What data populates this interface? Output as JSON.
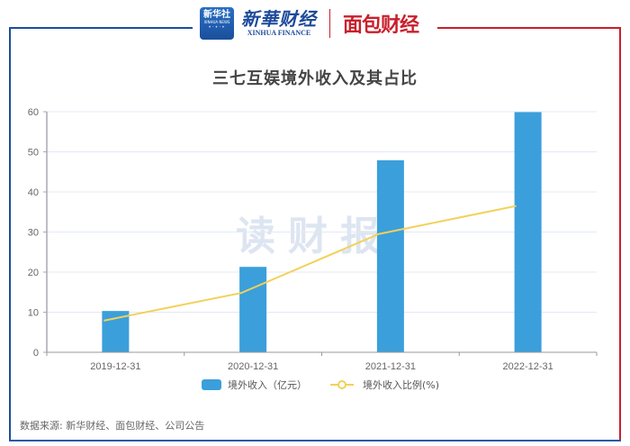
{
  "header": {
    "logo_xinhua_badge": "新华社",
    "logo_xinhua_badge_sub": "XINHUA NEWS",
    "logo_xinhua_finance_cn": "新華财经",
    "logo_xinhua_finance_en": "XINHUA FINANCE",
    "logo_mianbao": "面包财经"
  },
  "watermark": "读财报",
  "source": "数据来源: 新华财经、面包财经、公司公告",
  "colors": {
    "bar": "#3a9fdb",
    "line": "#f2d15a",
    "frame_left": "#1f4e9c",
    "frame_right": "#c8202c"
  },
  "chart_data": {
    "type": "bar",
    "title": "三七互娱境外收入及其占比",
    "categories": [
      "2019-12-31",
      "2020-12-31",
      "2021-12-31",
      "2022-12-31"
    ],
    "series": [
      {
        "name": "境外收入（亿元）",
        "type": "bar",
        "values": [
          10.3,
          21.3,
          47.9,
          59.9
        ]
      },
      {
        "name": "境外收入比例(%)",
        "type": "line",
        "values": [
          7.9,
          14.8,
          29.5,
          36.5
        ]
      }
    ],
    "xlabel": "",
    "ylabel": "",
    "ylim": [
      0,
      60
    ],
    "yticks": [
      "0",
      "10",
      "20",
      "30",
      "40",
      "50",
      "60"
    ],
    "grid": true,
    "legend_position": "bottom"
  }
}
